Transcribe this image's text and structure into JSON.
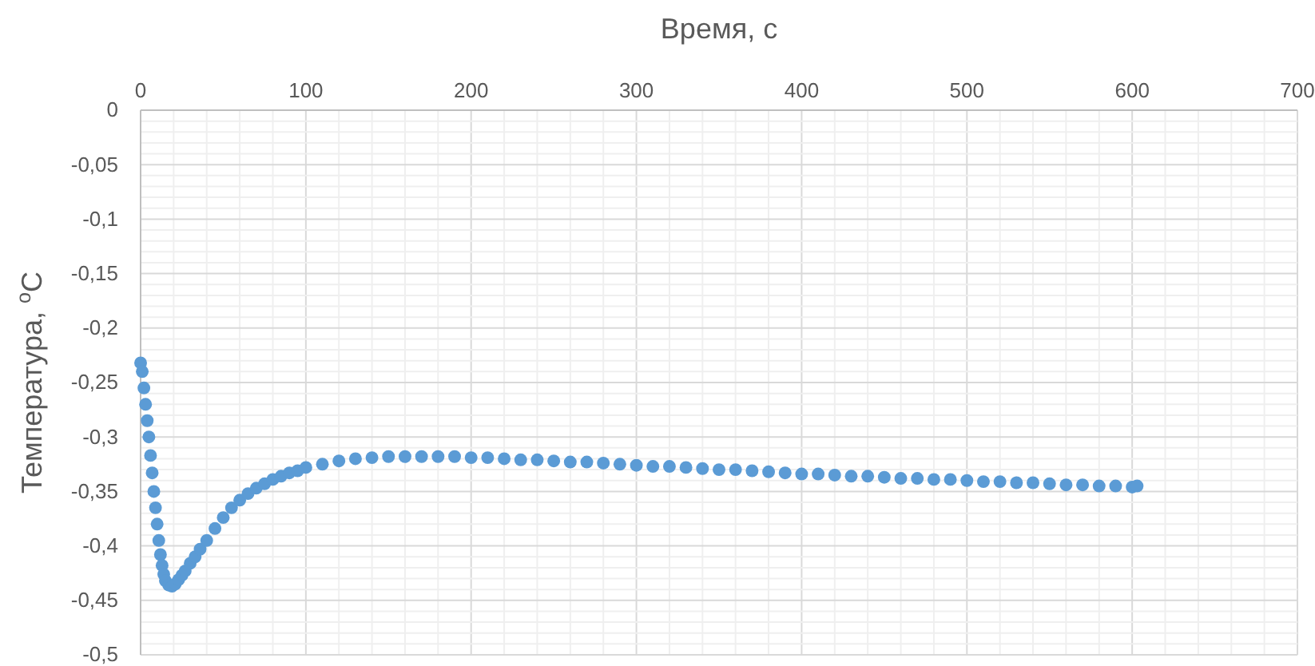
{
  "chart_data": {
    "type": "scatter",
    "xlabel": "Время, с",
    "ylabel": "Температура, $^{o}$C",
    "xlim": [
      0,
      700
    ],
    "xticks": [
      0,
      100,
      200,
      300,
      400,
      500,
      600,
      700
    ],
    "ylim": [
      -0.5,
      0
    ],
    "yticks": [
      {
        "value": 0,
        "label": "0"
      },
      {
        "value": -0.05,
        "label": "-0,05"
      },
      {
        "value": -0.1,
        "label": "-0,1"
      },
      {
        "value": -0.15,
        "label": "-0,15"
      },
      {
        "value": -0.2,
        "label": "-0,2"
      },
      {
        "value": -0.25,
        "label": "-0,25"
      },
      {
        "value": -0.3,
        "label": "-0,3"
      },
      {
        "value": -0.35,
        "label": "-0,35"
      },
      {
        "value": -0.4,
        "label": "-0,4"
      },
      {
        "value": -0.45,
        "label": "-0,45"
      },
      {
        "value": -0.5,
        "label": "-0,5"
      }
    ],
    "grid": true,
    "marker": "circle",
    "series": [
      {
        "color": "#5b9bd5",
        "x": [
          0,
          1,
          2,
          3,
          4,
          5,
          6,
          7,
          8,
          9,
          10,
          11,
          12,
          13,
          14,
          15,
          17,
          19,
          21,
          23,
          25,
          27,
          30,
          33,
          36,
          40,
          45,
          50,
          55,
          60,
          65,
          70,
          75,
          80,
          85,
          90,
          95,
          100,
          110,
          120,
          130,
          140,
          150,
          160,
          170,
          180,
          190,
          200,
          210,
          220,
          230,
          240,
          250,
          260,
          270,
          280,
          290,
          300,
          310,
          320,
          330,
          340,
          350,
          360,
          370,
          380,
          390,
          400,
          410,
          420,
          430,
          440,
          450,
          460,
          470,
          480,
          490,
          500,
          510,
          520,
          530,
          540,
          550,
          560,
          570,
          580,
          590,
          600,
          603
        ],
        "values": [
          -0.232,
          -0.24,
          -0.255,
          -0.27,
          -0.285,
          -0.3,
          -0.317,
          -0.333,
          -0.35,
          -0.365,
          -0.38,
          -0.395,
          -0.408,
          -0.418,
          -0.426,
          -0.432,
          -0.436,
          -0.437,
          -0.435,
          -0.431,
          -0.427,
          -0.423,
          -0.416,
          -0.41,
          -0.403,
          -0.395,
          -0.384,
          -0.374,
          -0.365,
          -0.358,
          -0.352,
          -0.347,
          -0.343,
          -0.339,
          -0.336,
          -0.333,
          -0.331,
          -0.328,
          -0.325,
          -0.322,
          -0.32,
          -0.319,
          -0.318,
          -0.318,
          -0.318,
          -0.318,
          -0.318,
          -0.319,
          -0.319,
          -0.32,
          -0.321,
          -0.321,
          -0.322,
          -0.323,
          -0.323,
          -0.324,
          -0.325,
          -0.326,
          -0.327,
          -0.327,
          -0.328,
          -0.329,
          -0.33,
          -0.33,
          -0.331,
          -0.332,
          -0.333,
          -0.334,
          -0.334,
          -0.335,
          -0.336,
          -0.336,
          -0.337,
          -0.338,
          -0.338,
          -0.339,
          -0.339,
          -0.34,
          -0.341,
          -0.341,
          -0.342,
          -0.342,
          -0.343,
          -0.344,
          -0.344,
          -0.345,
          -0.345,
          -0.346,
          -0.345
        ]
      }
    ]
  }
}
